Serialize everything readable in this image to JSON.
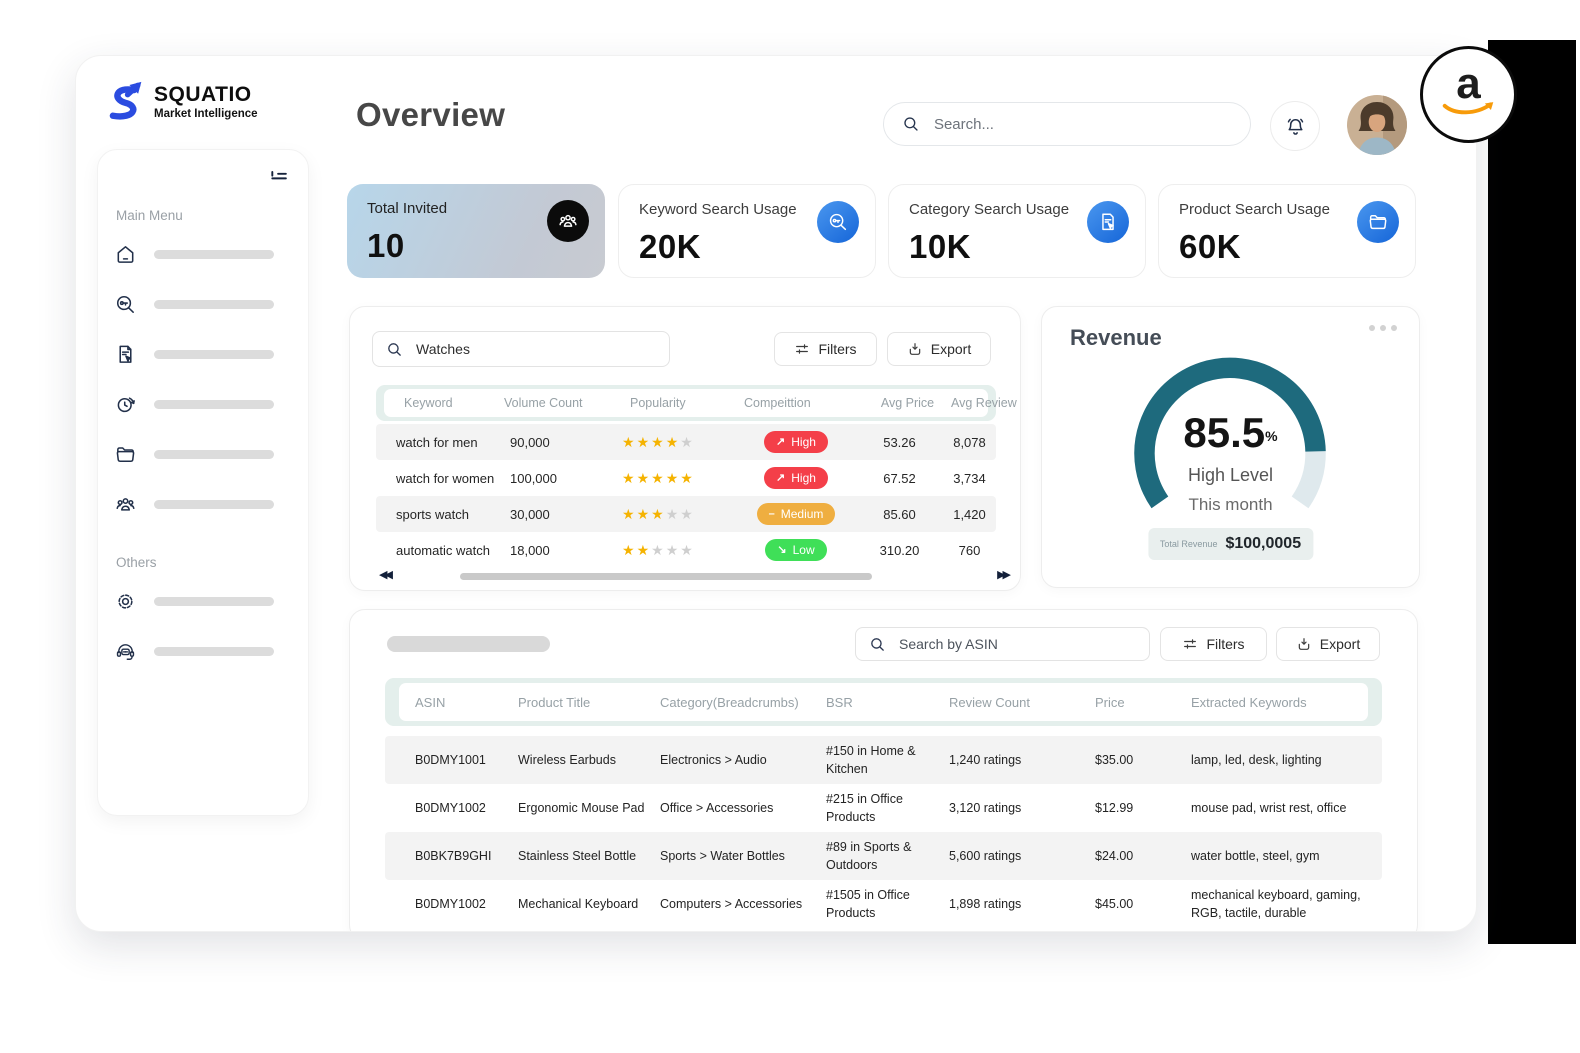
{
  "brand": {
    "name": "SQUATIO",
    "tagline": "Market Intelligence"
  },
  "header": {
    "title": "Overview",
    "search_placeholder": "Search..."
  },
  "sidebar": {
    "main_menu_label": "Main Menu",
    "others_label": "Others",
    "main_items": [
      {
        "icon": "home-icon"
      },
      {
        "icon": "keyword-search-icon"
      },
      {
        "icon": "category-search-icon"
      },
      {
        "icon": "history-icon"
      },
      {
        "icon": "products-folder-icon"
      },
      {
        "icon": "users-icon"
      }
    ],
    "other_items": [
      {
        "icon": "settings-icon"
      },
      {
        "icon": "support-icon"
      }
    ]
  },
  "stats": [
    {
      "label": "Total Invited",
      "value": "10",
      "icon": "users-icon"
    },
    {
      "label": "Keyword Search Usage",
      "value": "20K",
      "icon": "keyword-search-icon"
    },
    {
      "label": "Category Search Usage",
      "value": "10K",
      "icon": "category-search-icon"
    },
    {
      "label": "Product  Search Usage",
      "value": "60K",
      "icon": "folder-icon"
    }
  ],
  "keyword_panel": {
    "search_value": "Watches",
    "filters_label": "Filters",
    "export_label": "Export",
    "columns": [
      "Keyword",
      "Volume Count",
      "Popularity",
      "Compeittion",
      "Avg Price",
      "Avg Review"
    ],
    "rows": [
      {
        "keyword": "watch for men",
        "volume": "90,000",
        "stars": 4,
        "competition": "High",
        "trend": "up",
        "avg_price": "53.26",
        "avg_review": "8,078"
      },
      {
        "keyword": "watch for women",
        "volume": "100,000",
        "stars": 5,
        "competition": "High",
        "trend": "up",
        "avg_price": "67.52",
        "avg_review": "3,734"
      },
      {
        "keyword": "sports watch",
        "volume": "30,000",
        "stars": 3,
        "competition": "Medium",
        "trend": "flat",
        "avg_price": "85.60",
        "avg_review": "1,420"
      },
      {
        "keyword": "automatic watch",
        "volume": "18,000",
        "stars": 2,
        "competition": "Low",
        "trend": "down",
        "avg_price": "310.20",
        "avg_review": "760"
      }
    ]
  },
  "revenue": {
    "title": "Revenue",
    "percent": 85.5,
    "percent_label": "85.5",
    "percent_sign": "%",
    "level": "High Level",
    "period": "This month",
    "total_label": "Total Revenue",
    "total_value": "$100,0005",
    "gauge_sweep_deg": 250
  },
  "asin_panel": {
    "search_placeholder": "Search by ASIN",
    "filters_label": "Filters",
    "export_label": "Export",
    "columns": [
      "ASIN",
      "Product Title",
      "Category(Breadcrumbs)",
      "BSR",
      "Review Count",
      "Price",
      "Extracted Keywords"
    ],
    "rows": [
      {
        "asin": "B0DMY1001",
        "title": "Wireless Earbuds",
        "category": "Electronics > Audio",
        "bsr": "#150 in Home & Kitchen",
        "reviews": "1,240 ratings",
        "price": "$35.00",
        "keywords": "lamp, led, desk, lighting"
      },
      {
        "asin": "B0DMY1002",
        "title": "Ergonomic Mouse Pad",
        "category": "Office > Accessories",
        "bsr": "#215 in Office Products",
        "reviews": "3,120 ratings",
        "price": "$12.99",
        "keywords": "mouse pad, wrist rest, office"
      },
      {
        "asin": "B0BK7B9GHI",
        "title": "Stainless Steel Bottle",
        "category": "Sports > Water Bottles",
        "bsr": "#89 in Sports & Outdoors",
        "reviews": "5,600 ratings",
        "price": "$24.00",
        "keywords": "water bottle, steel, gym"
      },
      {
        "asin": "B0DMY1002",
        "title": "Mechanical Keyboard",
        "category": "Computers > Accessories",
        "bsr": "#1505 in Office Products",
        "reviews": "1,898 ratings",
        "price": "$45.00",
        "keywords": "mechanical keyboard, gaming, RGB, tactile, durable"
      }
    ]
  },
  "amazon_badge": {
    "letter": "a"
  },
  "icons": {
    "trend_up": "↗",
    "trend_flat": "–",
    "trend_down": "↘",
    "scroll_left": "◀◀",
    "scroll_right": "▶▶"
  },
  "colors": {
    "brand_blue": "#2b4ce0",
    "icon_navy": "#22304a",
    "stat_blue": "#1565d8",
    "badge_high": "#f43f49",
    "badge_medium": "#efae40",
    "badge_low": "#3fdf58",
    "star": "#f5b301",
    "star_empty": "#cfcfcf",
    "gauge": "#1e6a7d",
    "gauge_track": "#dfe9ed",
    "band": "#e4efec",
    "row_alt": "#f3f3f3"
  }
}
